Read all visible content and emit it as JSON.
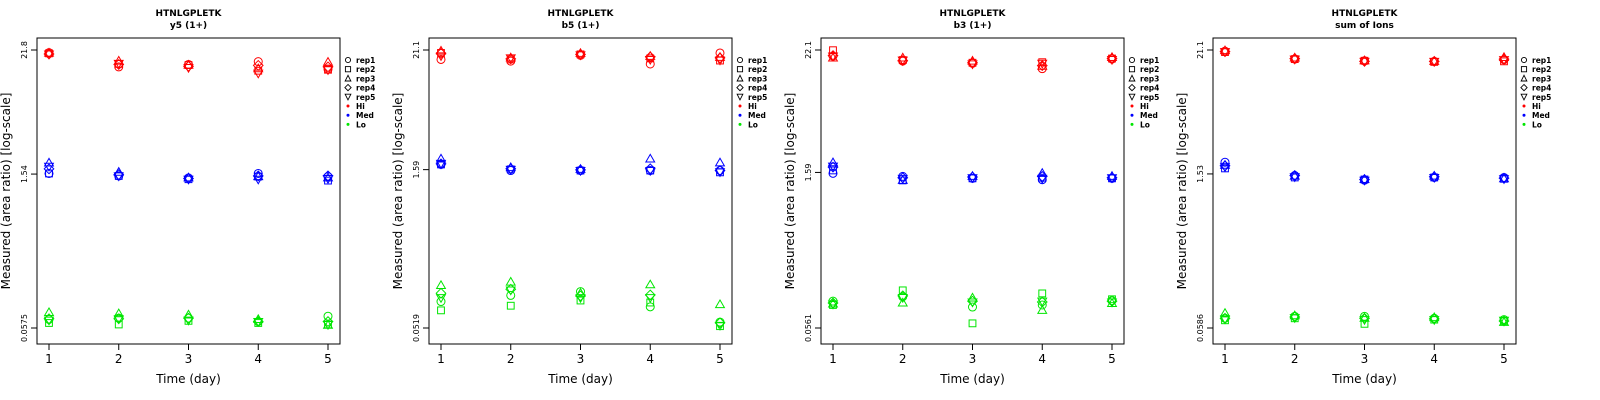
{
  "figure": {
    "title": "HTNLGPLETK"
  },
  "chart_data": [
    {
      "type": "scatter",
      "title": "HTNLGPLETK",
      "subtitle": "y5 (1+)",
      "xlabel": "Time (day)",
      "ylabel": "Measured (area ratio) [log-scale]",
      "x": [
        1,
        2,
        3,
        4,
        5
      ],
      "xlim": [
        1,
        5
      ],
      "yscale": "log",
      "ylim": [
        0.0575,
        21.8
      ],
      "yticks": [
        "0.0575",
        "1.54",
        "21.8"
      ],
      "grid": false,
      "legend_position": "right",
      "series": [
        {
          "name": "Hi",
          "color": "#ff0000",
          "replicates": [
            {
              "name": "rep1",
              "values": [
                20.6,
                15.2,
                16.0,
                17.0,
                14.5
              ]
            },
            {
              "name": "rep2",
              "values": [
                20.3,
                16.2,
                15.8,
                14.0,
                14.3
              ]
            },
            {
              "name": "rep3",
              "values": [
                20.4,
                17.2,
                15.8,
                14.6,
                16.8
              ]
            },
            {
              "name": "rep4",
              "values": [
                20.0,
                16.0,
                15.4,
                15.7,
                15.2
              ]
            },
            {
              "name": "rep5",
              "values": [
                20.0,
                16.4,
                15.0,
                13.3,
                14.3
              ]
            }
          ]
        },
        {
          "name": "Med",
          "color": "#0000ff",
          "replicates": [
            {
              "name": "rep1",
              "values": [
                1.56,
                1.48,
                1.42,
                1.56,
                1.46
              ]
            },
            {
              "name": "rep2",
              "values": [
                1.56,
                1.48,
                1.38,
                1.46,
                1.34
              ]
            },
            {
              "name": "rep3",
              "values": [
                1.95,
                1.6,
                1.42,
                1.46,
                1.42
              ]
            },
            {
              "name": "rep4",
              "values": [
                1.72,
                1.52,
                1.4,
                1.48,
                1.48
              ]
            },
            {
              "name": "rep5",
              "values": [
                1.82,
                1.48,
                1.38,
                1.38,
                1.4
              ]
            }
          ]
        },
        {
          "name": "Lo",
          "color": "#00e600",
          "replicates": [
            {
              "name": "rep1",
              "values": [
                0.069,
                0.071,
                0.071,
                0.066,
                0.074
              ]
            },
            {
              "name": "rep2",
              "values": [
                0.064,
                0.062,
                0.067,
                0.064,
                0.062
              ]
            },
            {
              "name": "rep3",
              "values": [
                0.08,
                0.078,
                0.076,
                0.069,
                0.061
              ]
            },
            {
              "name": "rep4",
              "values": [
                0.07,
                0.07,
                0.071,
                0.066,
                0.066
              ]
            },
            {
              "name": "rep5",
              "values": [
                0.068,
                0.07,
                0.068,
                0.066,
                0.062
              ]
            }
          ]
        }
      ]
    },
    {
      "type": "scatter",
      "title": "HTNLGPLETK",
      "subtitle": "b5 (1+)",
      "xlabel": "Time (day)",
      "ylabel": "Measured (area ratio) [log-scale]",
      "x": [
        1,
        2,
        3,
        4,
        5
      ],
      "xlim": [
        1,
        5
      ],
      "yscale": "log",
      "ylim": [
        0.0519,
        21.1
      ],
      "yticks": [
        "0.0519",
        "1.59",
        "21.1"
      ],
      "grid": false,
      "legend_position": "right",
      "series": [
        {
          "name": "Hi",
          "color": "#ff0000",
          "replicates": [
            {
              "name": "rep1",
              "values": [
                17.2,
                16.6,
                18.8,
                15.6,
                19.8
              ]
            },
            {
              "name": "rep2",
              "values": [
                19.8,
                17.2,
                19.2,
                17.6,
                16.8
              ]
            },
            {
              "name": "rep3",
              "values": [
                20.6,
                17.8,
                19.6,
                18.4,
                18.0
              ]
            },
            {
              "name": "rep4",
              "values": [
                19.6,
                17.4,
                19.2,
                18.2,
                17.8
              ]
            },
            {
              "name": "rep5",
              "values": [
                18.6,
                17.8,
                19.0,
                17.2,
                17.0
              ]
            }
          ]
        },
        {
          "name": "Med",
          "color": "#0000ff",
          "replicates": [
            {
              "name": "rep1",
              "values": [
                1.78,
                1.56,
                1.56,
                1.56,
                1.56
              ]
            },
            {
              "name": "rep2",
              "values": [
                1.78,
                1.6,
                1.56,
                1.56,
                1.5
              ]
            },
            {
              "name": "rep3",
              "values": [
                2.0,
                1.66,
                1.6,
                2.0,
                1.84
              ]
            },
            {
              "name": "rep4",
              "values": [
                1.8,
                1.62,
                1.58,
                1.62,
                1.56
              ]
            },
            {
              "name": "rep5",
              "values": [
                1.82,
                1.6,
                1.56,
                1.56,
                1.52
              ]
            }
          ]
        },
        {
          "name": "Lo",
          "color": "#00e600",
          "replicates": [
            {
              "name": "rep1",
              "values": [
                0.092,
                0.105,
                0.114,
                0.082,
                0.059
              ]
            },
            {
              "name": "rep2",
              "values": [
                0.076,
                0.084,
                0.094,
                0.09,
                0.054
              ]
            },
            {
              "name": "rep3",
              "values": [
                0.13,
                0.14,
                0.11,
                0.132,
                0.086
              ]
            },
            {
              "name": "rep4",
              "values": [
                0.11,
                0.12,
                0.104,
                0.106,
                0.058
              ]
            },
            {
              "name": "rep5",
              "values": [
                0.1,
                0.118,
                0.1,
                0.1,
                0.055
              ]
            }
          ]
        }
      ]
    },
    {
      "type": "scatter",
      "title": "HTNLGPLETK",
      "subtitle": "b3 (1+)",
      "xlabel": "Time (day)",
      "ylabel": "Measured (area ratio) [log-scale]",
      "x": [
        1,
        2,
        3,
        4,
        5
      ],
      "xlim": [
        1,
        5
      ],
      "yscale": "log",
      "ylim": [
        0.0561,
        22.1
      ],
      "yticks": [
        "0.0561",
        "1.59",
        "22.1"
      ],
      "grid": false,
      "legend_position": "right",
      "series": [
        {
          "name": "Hi",
          "color": "#ff0000",
          "replicates": [
            {
              "name": "rep1",
              "values": [
                19.4,
                17.4,
                16.6,
                14.8,
                18.2
              ]
            },
            {
              "name": "rep2",
              "values": [
                22.0,
                17.8,
                16.8,
                17.0,
                18.4
              ]
            },
            {
              "name": "rep3",
              "values": [
                18.6,
                18.6,
                17.4,
                15.6,
                18.8
              ]
            },
            {
              "name": "rep4",
              "values": [
                19.6,
                17.6,
                16.8,
                15.8,
                18.4
              ]
            },
            {
              "name": "rep5",
              "values": [
                19.4,
                17.8,
                16.4,
                16.6,
                18.0
              ]
            }
          ]
        },
        {
          "name": "Med",
          "color": "#0000ff",
          "replicates": [
            {
              "name": "rep1",
              "values": [
                1.56,
                1.46,
                1.4,
                1.36,
                1.4
              ]
            },
            {
              "name": "rep2",
              "values": [
                1.66,
                1.34,
                1.4,
                1.42,
                1.4
              ]
            },
            {
              "name": "rep3",
              "values": [
                1.96,
                1.34,
                1.46,
                1.56,
                1.46
              ]
            },
            {
              "name": "rep4",
              "values": [
                1.78,
                1.42,
                1.44,
                1.46,
                1.42
              ]
            },
            {
              "name": "rep5",
              "values": [
                1.82,
                1.4,
                1.42,
                1.4,
                1.42
              ]
            }
          ]
        },
        {
          "name": "Lo",
          "color": "#00e600",
          "replicates": [
            {
              "name": "rep1",
              "values": [
                0.1,
                0.11,
                0.088,
                0.092,
                0.101
              ]
            },
            {
              "name": "rep2",
              "values": [
                0.092,
                0.126,
                0.062,
                0.118,
                0.104
              ]
            },
            {
              "name": "rep3",
              "values": [
                0.094,
                0.096,
                0.107,
                0.082,
                0.095
              ]
            },
            {
              "name": "rep4",
              "values": [
                0.096,
                0.112,
                0.1,
                0.098,
                0.1
              ]
            },
            {
              "name": "rep5",
              "values": [
                0.094,
                0.108,
                0.098,
                0.1,
                0.098
              ]
            }
          ]
        }
      ]
    },
    {
      "type": "scatter",
      "title": "HTNLGPLETK",
      "subtitle": "sum of Ions",
      "xlabel": "Time (day)",
      "ylabel": "Measured (area ratio) [log-scale]",
      "x": [
        1,
        2,
        3,
        4,
        5
      ],
      "xlim": [
        1,
        5
      ],
      "yscale": "log",
      "ylim": [
        0.0586,
        21.1
      ],
      "yticks": [
        "0.0586",
        "1.53",
        "21.1"
      ],
      "grid": false,
      "legend_position": "right",
      "series": [
        {
          "name": "Hi",
          "color": "#ff0000",
          "replicates": [
            {
              "name": "rep1",
              "values": [
                20.6,
                17.4,
                16.8,
                16.6,
                17.2
              ]
            },
            {
              "name": "rep2",
              "values": [
                20.2,
                17.4,
                16.8,
                16.4,
                16.6
              ]
            },
            {
              "name": "rep3",
              "values": [
                20.8,
                17.8,
                16.8,
                16.6,
                18.0
              ]
            },
            {
              "name": "rep4",
              "values": [
                20.4,
                17.6,
                16.6,
                16.6,
                17.4
              ]
            },
            {
              "name": "rep5",
              "values": [
                20.4,
                17.4,
                16.6,
                16.6,
                17.2
              ]
            }
          ]
        },
        {
          "name": "Med",
          "color": "#0000ff",
          "replicates": [
            {
              "name": "rep1",
              "values": [
                1.96,
                1.48,
                1.34,
                1.42,
                1.42
              ]
            },
            {
              "name": "rep2",
              "values": [
                1.72,
                1.42,
                1.36,
                1.42,
                1.38
              ]
            },
            {
              "name": "rep3",
              "values": [
                1.84,
                1.46,
                1.36,
                1.46,
                1.38
              ]
            },
            {
              "name": "rep4",
              "values": [
                1.82,
                1.48,
                1.36,
                1.44,
                1.4
              ]
            },
            {
              "name": "rep5",
              "values": [
                1.78,
                1.44,
                1.34,
                1.42,
                1.38
              ]
            }
          ]
        },
        {
          "name": "Lo",
          "color": "#00e600",
          "replicates": [
            {
              "name": "rep1",
              "values": [
                0.072,
                0.075,
                0.075,
                0.072,
                0.07
              ]
            },
            {
              "name": "rep2",
              "values": [
                0.069,
                0.072,
                0.064,
                0.07,
                0.068
              ]
            },
            {
              "name": "rep3",
              "values": [
                0.08,
                0.076,
                0.072,
                0.073,
                0.066
              ]
            },
            {
              "name": "rep4",
              "values": [
                0.072,
                0.074,
                0.072,
                0.071,
                0.068
              ]
            },
            {
              "name": "rep5",
              "values": [
                0.071,
                0.073,
                0.07,
                0.07,
                0.069
              ]
            }
          ]
        }
      ]
    }
  ]
}
